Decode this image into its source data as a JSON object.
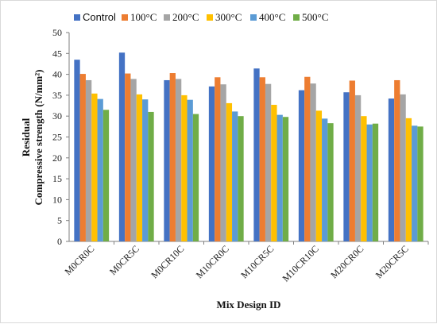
{
  "chart_data": {
    "type": "bar",
    "title": "",
    "xlabel": "Mix Design ID",
    "ylabel_lines": [
      "Residual",
      "Compressive strength (N/mm²)"
    ],
    "ylim": [
      0,
      50
    ],
    "yticks": [
      0,
      5,
      10,
      15,
      20,
      25,
      30,
      35,
      40,
      45,
      50
    ],
    "grid": false,
    "legend": "top",
    "categories": [
      "M0CR0C",
      "M0CR5C",
      "M0CR10C",
      "M10CR0C",
      "M10CR5C",
      "M10CR10C",
      "M20CR0C",
      "M20CR5C"
    ],
    "series": [
      {
        "name": "Control",
        "color": "#4472c4",
        "values": [
          43.5,
          45.2,
          38.6,
          37.1,
          41.4,
          36.2,
          35.7,
          34.2
        ]
      },
      {
        "name": "100°C",
        "color": "#ed7d31",
        "values": [
          40.1,
          40.2,
          40.3,
          39.3,
          39.3,
          39.4,
          38.5,
          38.6
        ]
      },
      {
        "name": "200°C",
        "color": "#a5a5a5",
        "values": [
          38.6,
          38.9,
          38.9,
          37.6,
          37.7,
          37.8,
          35.0,
          35.2
        ]
      },
      {
        "name": "300°C",
        "color": "#ffc000",
        "values": [
          35.4,
          35.2,
          35.0,
          33.1,
          32.7,
          31.3,
          30.0,
          29.5
        ]
      },
      {
        "name": "400°C",
        "color": "#5b9bd5",
        "values": [
          34.1,
          34.0,
          33.9,
          31.1,
          30.3,
          29.4,
          28.0,
          27.7
        ]
      },
      {
        "name": "500°C",
        "color": "#70ad47",
        "values": [
          31.5,
          31.0,
          30.5,
          30.0,
          29.8,
          28.3,
          28.2,
          27.5
        ]
      }
    ]
  }
}
